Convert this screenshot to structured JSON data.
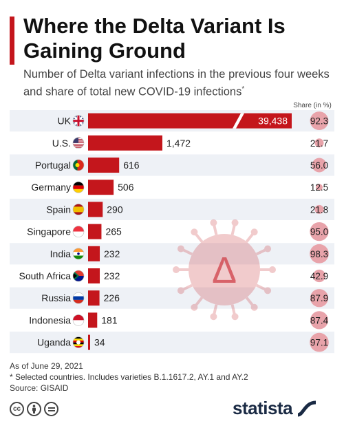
{
  "header": {
    "title": "Where the Delta Variant Is Gaining Ground",
    "subtitle": "Number of Delta variant infections in the previous four weeks and share of total new COVID-19 infections",
    "subtitle_marker": "*"
  },
  "chart_data": {
    "type": "bar",
    "orientation": "horizontal",
    "series_name": "",
    "share_header": "Share (in %)",
    "categories": [
      "UK",
      "U.S.",
      "Portugal",
      "Germany",
      "Spain",
      "Singapore",
      "India",
      "South Africa",
      "Russia",
      "Indonesia",
      "Uganda"
    ],
    "values": [
      39438,
      1472,
      616,
      506,
      290,
      265,
      232,
      232,
      226,
      181,
      34
    ],
    "value_labels": [
      "39,438",
      "1,472",
      "616",
      "506",
      "290",
      "265",
      "232",
      "232",
      "226",
      "181",
      "34"
    ],
    "shares": [
      92.3,
      21.7,
      56.0,
      12.5,
      21.8,
      95.0,
      98.3,
      42.9,
      87.9,
      87.4,
      97.1
    ],
    "share_labels": [
      "92.3",
      "21.7",
      "56.0",
      "12.5",
      "21.8",
      "95.0",
      "98.3",
      "42.9",
      "87.9",
      "87.4",
      "97.1"
    ],
    "bar_color": "#c4161c",
    "share_color": "#e8a3aa",
    "stripe_color": "#eef1f6",
    "annotation_symbol": "Δ"
  },
  "footer": {
    "date": "As of June 29, 2021",
    "note": "* Selected countries. Includes varieties B.1.1617.2, AY.1 and AY.2",
    "source": "Source: GISAID"
  },
  "license_icons": [
    "cc-icon",
    "by-icon",
    "nd-icon"
  ],
  "brand": {
    "name": "statista"
  }
}
